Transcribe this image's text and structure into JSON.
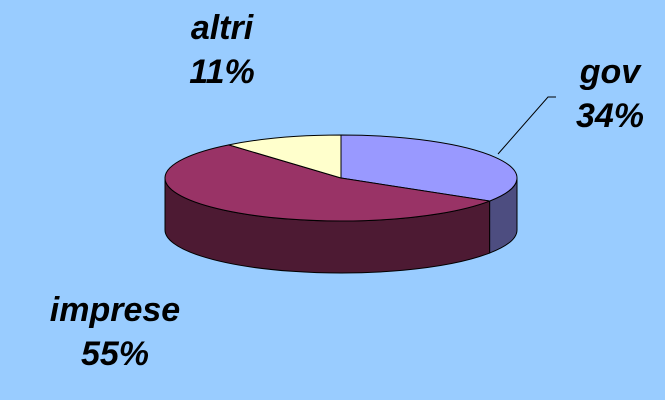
{
  "chart_data": {
    "type": "pie",
    "slices": [
      {
        "label": "gov",
        "pct_text": "34%",
        "value": 34,
        "color": "#9999ff",
        "side_color": "#4d4d80"
      },
      {
        "label": "imprese",
        "pct_text": "55%",
        "value": 55,
        "color": "#993366",
        "side_color": "#4d1a33"
      },
      {
        "label": "altri",
        "pct_text": "11%",
        "value": 11,
        "color": "#ffffcc",
        "side_color": "#808066"
      }
    ],
    "style": "3d"
  }
}
